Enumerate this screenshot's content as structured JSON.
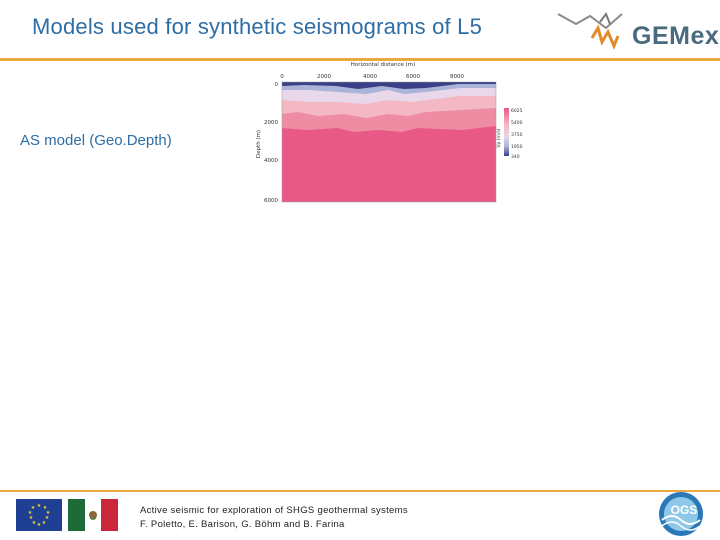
{
  "slide": {
    "title": "Models used for synthetic seismograms of L5",
    "model_label": "AS model (Geo.Depth)"
  },
  "logo": {
    "text": "GEMex"
  },
  "figure": {
    "x_axis_title": "Horizontal distance (m)",
    "x_ticks": [
      "0",
      "2000",
      "4000",
      "6000",
      "8000"
    ],
    "y_axis_title": "Depth (m)",
    "y_ticks": [
      "0",
      "2000",
      "4000",
      "6000"
    ],
    "colorbar_title": "Vp (m/s)",
    "colorbar_ticks": [
      "6025",
      "5400",
      "3750",
      "1950",
      "340"
    ],
    "colors": {
      "deep": "#e85a85",
      "mid": "#ee8ca4",
      "upper": "#f4b8c4",
      "shallow_light": "#e8d8ea",
      "shallow_blue": "#a9b4d8",
      "surface_dark": "#3a3f86"
    }
  },
  "footer": {
    "line1": "Active seismic for exploration of SHGS geothermal systems",
    "line2": "F. Poletto, E. Barison, G. Böhm and B. Farina",
    "ogs_text": "OGS"
  }
}
